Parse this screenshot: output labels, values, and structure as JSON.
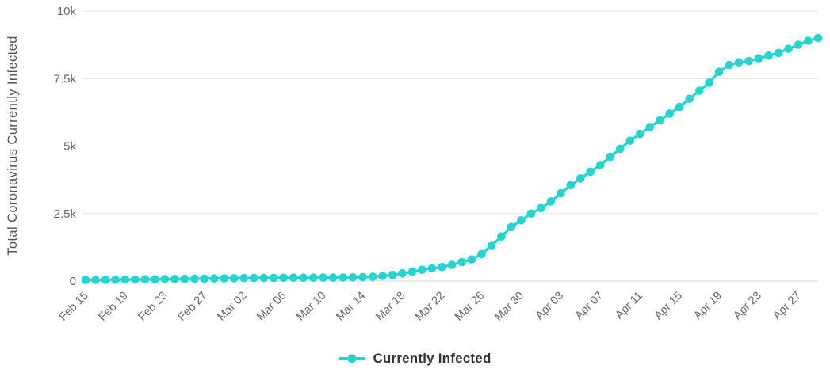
{
  "chart_data": {
    "type": "line",
    "title": "",
    "xlabel": "",
    "ylabel": "Total Coronavirus Currently Infected",
    "ylim": [
      0,
      10000
    ],
    "grid": true,
    "legend_position": "bottom",
    "x_tick_interval": 4,
    "yticks": [
      {
        "value": 0,
        "label": "0"
      },
      {
        "value": 2500,
        "label": "2.5k"
      },
      {
        "value": 5000,
        "label": "5k"
      },
      {
        "value": 7500,
        "label": "7.5k"
      },
      {
        "value": 10000,
        "label": "10k"
      }
    ],
    "x": [
      "Feb 15",
      "Feb 16",
      "Feb 17",
      "Feb 18",
      "Feb 19",
      "Feb 20",
      "Feb 21",
      "Feb 22",
      "Feb 23",
      "Feb 24",
      "Feb 25",
      "Feb 26",
      "Feb 27",
      "Feb 28",
      "Feb 29",
      "Mar 01",
      "Mar 02",
      "Mar 03",
      "Mar 04",
      "Mar 05",
      "Mar 06",
      "Mar 07",
      "Mar 08",
      "Mar 09",
      "Mar 10",
      "Mar 11",
      "Mar 12",
      "Mar 13",
      "Mar 14",
      "Mar 15",
      "Mar 16",
      "Mar 17",
      "Mar 18",
      "Mar 19",
      "Mar 20",
      "Mar 21",
      "Mar 22",
      "Mar 23",
      "Mar 24",
      "Mar 25",
      "Mar 26",
      "Mar 27",
      "Mar 28",
      "Mar 29",
      "Mar 30",
      "Mar 31",
      "Apr 01",
      "Apr 02",
      "Apr 03",
      "Apr 04",
      "Apr 05",
      "Apr 06",
      "Apr 07",
      "Apr 08",
      "Apr 09",
      "Apr 10",
      "Apr 11",
      "Apr 12",
      "Apr 13",
      "Apr 14",
      "Apr 15",
      "Apr 16",
      "Apr 17",
      "Apr 18",
      "Apr 19",
      "Apr 20",
      "Apr 21",
      "Apr 22",
      "Apr 23",
      "Apr 24",
      "Apr 25",
      "Apr 26",
      "Apr 27",
      "Apr 28",
      "Apr 29"
    ],
    "series": [
      {
        "name": "Currently Infected",
        "color": "#25d4ce",
        "values": [
          40,
          44,
          48,
          52,
          56,
          60,
          64,
          68,
          72,
          77,
          82,
          87,
          92,
          97,
          102,
          107,
          111,
          115,
          118,
          121,
          123,
          125,
          126,
          127,
          128,
          130,
          133,
          138,
          146,
          160,
          190,
          230,
          285,
          350,
          420,
          470,
          520,
          600,
          700,
          800,
          1000,
          1300,
          1650,
          2000,
          2250,
          2500,
          2700,
          2950,
          3250,
          3550,
          3800,
          4050,
          4300,
          4600,
          4900,
          5200,
          5450,
          5700,
          5950,
          6200,
          6450,
          6750,
          7050,
          7350,
          7750,
          8000,
          8100,
          8150,
          8250,
          8350,
          8450,
          8600,
          8750,
          8900,
          9000
        ]
      }
    ]
  },
  "legend": {
    "label": "Currently Infected"
  },
  "colors": {
    "series": "#25d4ce",
    "gridline": "#e6e6e6",
    "axis_line": "#d6d6d6",
    "tick_text": "#666666",
    "axis_title_text": "#555555",
    "legend_text": "#333333",
    "background": "#ffffff"
  }
}
